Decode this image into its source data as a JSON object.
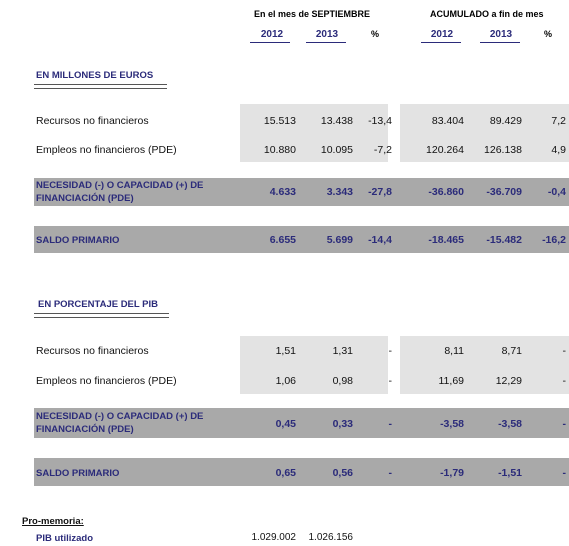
{
  "header": {
    "month_title": "En el mes de SEPTIEMBRE",
    "cumulative_title": "ACUMULADO a fin de mes",
    "years": [
      "2012",
      "2013",
      "2012",
      "2013"
    ],
    "pct": "%"
  },
  "euros": {
    "title": "EN MILLONES DE EUROS",
    "rows": [
      {
        "label": "Recursos no financieros",
        "v": [
          "15.513",
          "13.438",
          "-13,4",
          "83.404",
          "89.429",
          "7,2"
        ]
      },
      {
        "label": "Empleos no financieros (PDE)",
        "v": [
          "10.880",
          "10.095",
          "-7,2",
          "120.264",
          "126.138",
          "4,9"
        ]
      }
    ],
    "necesidad": {
      "label1": "NECESIDAD (-) O CAPACIDAD (+) DE",
      "label2": "FINANCIACIÓN (PDE)",
      "v": [
        "4.633",
        "3.343",
        "-27,8",
        "-36.860",
        "-36.709",
        "-0,4"
      ]
    },
    "saldo": {
      "label": "SALDO PRIMARIO",
      "v": [
        "6.655",
        "5.699",
        "-14,4",
        "-18.465",
        "-15.482",
        "-16,2"
      ]
    }
  },
  "pib": {
    "title": "EN PORCENTAJE DEL PIB",
    "rows": [
      {
        "label": "Recursos no financieros",
        "v": [
          "1,51",
          "1,31",
          "-",
          "8,11",
          "8,71",
          "-"
        ]
      },
      {
        "label": "Empleos no financieros (PDE)",
        "v": [
          "1,06",
          "0,98",
          "-",
          "11,69",
          "12,29",
          "-"
        ]
      }
    ],
    "necesidad": {
      "label1": "NECESIDAD (-) O CAPACIDAD (+) DE",
      "label2": "FINANCIACIÓN (PDE)",
      "v": [
        "0,45",
        "0,33",
        "-",
        "-3,58",
        "-3,58",
        "-"
      ]
    },
    "saldo": {
      "label": "SALDO PRIMARIO",
      "v": [
        "0,65",
        "0,56",
        "-",
        "-1,79",
        "-1,51",
        "-"
      ]
    }
  },
  "memo": {
    "title": "Pro-memoria:",
    "label": "PIB utilizado",
    "v": [
      "1.029.002",
      "1.026.156"
    ]
  }
}
